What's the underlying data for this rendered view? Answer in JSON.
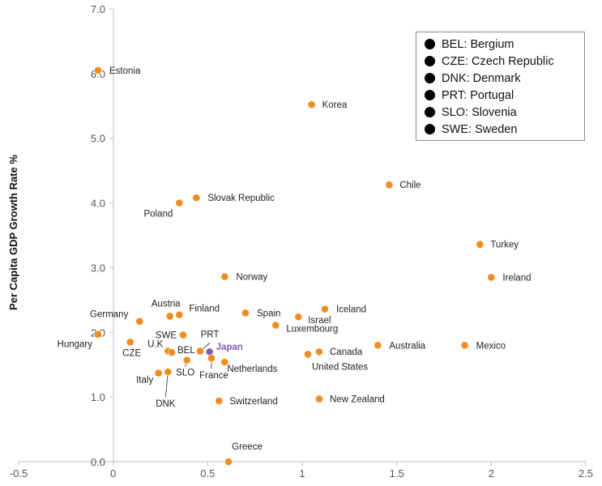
{
  "chart_data": {
    "type": "scatter",
    "ylabel": "Per Capita GDP Growth Rate %",
    "xlabel": "",
    "xlim": [
      -0.5,
      2.5
    ],
    "ylim": [
      0.0,
      7.0
    ],
    "x_ticks": [
      "-0.5",
      "0",
      "0.5",
      "1",
      "1.5",
      "2",
      "2.5"
    ],
    "y_ticks": [
      "0.0",
      "1.0",
      "2.0",
      "3.0",
      "4.0",
      "5.0",
      "6.0",
      "7.0"
    ],
    "point_color": "#f28c1e",
    "highlight_color": "#7a5fb0",
    "points": [
      {
        "label": "Estonia",
        "x": -0.08,
        "y": 6.05
      },
      {
        "label": "Korea",
        "x": 1.05,
        "y": 5.52
      },
      {
        "label": "Chile",
        "x": 1.46,
        "y": 4.28
      },
      {
        "label": "Slovak Republic",
        "x": 0.44,
        "y": 4.08
      },
      {
        "label": "Poland",
        "x": 0.35,
        "y": 4.0
      },
      {
        "label": "Turkey",
        "x": 1.94,
        "y": 3.36
      },
      {
        "label": "Norway",
        "x": 0.59,
        "y": 2.86
      },
      {
        "label": "Ireland",
        "x": 2.0,
        "y": 2.85
      },
      {
        "label": "Iceland",
        "x": 1.12,
        "y": 2.36
      },
      {
        "label": "Spain",
        "x": 0.7,
        "y": 2.3
      },
      {
        "label": "Austria",
        "x": 0.3,
        "y": 2.25
      },
      {
        "label": "Finland",
        "x": 0.35,
        "y": 2.27
      },
      {
        "label": "Israel",
        "x": 0.98,
        "y": 2.24
      },
      {
        "label": "Germany",
        "x": 0.14,
        "y": 2.17
      },
      {
        "label": "Luxembourg",
        "x": 0.86,
        "y": 2.11
      },
      {
        "label": "Hungary",
        "x": -0.08,
        "y": 1.97
      },
      {
        "label": "SWE",
        "x": 0.37,
        "y": 1.96
      },
      {
        "label": "CZE",
        "x": 0.09,
        "y": 1.85
      },
      {
        "label": "Australia",
        "x": 1.4,
        "y": 1.8
      },
      {
        "label": "Mexico",
        "x": 1.86,
        "y": 1.8
      },
      {
        "label": "U.K",
        "x": 0.29,
        "y": 1.71
      },
      {
        "label": "BEL",
        "x": 0.31,
        "y": 1.69
      },
      {
        "label": "PRT",
        "x": 0.46,
        "y": 1.71
      },
      {
        "label": "Japan",
        "x": 0.51,
        "y": 1.7,
        "highlight": true
      },
      {
        "label": "Canada",
        "x": 1.09,
        "y": 1.7
      },
      {
        "label": "United States",
        "x": 1.03,
        "y": 1.66
      },
      {
        "label": "SLO",
        "x": 0.39,
        "y": 1.57
      },
      {
        "label": "France",
        "x": 0.52,
        "y": 1.6
      },
      {
        "label": "Netherlands",
        "x": 0.59,
        "y": 1.54
      },
      {
        "label": "DNK",
        "x": 0.29,
        "y": 1.39
      },
      {
        "label": "Italy",
        "x": 0.24,
        "y": 1.37
      },
      {
        "label": "Switzerland",
        "x": 0.56,
        "y": 0.94
      },
      {
        "label": "New Zealand",
        "x": 1.09,
        "y": 0.97
      },
      {
        "label": "Greece",
        "x": 0.61,
        "y": 0.0
      }
    ],
    "legend": [
      {
        "label": "BEL: Bergium"
      },
      {
        "label": "CZE: Czech Republic"
      },
      {
        "label": "DNK: Denmark"
      },
      {
        "label": "PRT: Portugal"
      },
      {
        "label": "SLO: Slovenia"
      },
      {
        "label": "SWE: Sweden"
      }
    ]
  }
}
